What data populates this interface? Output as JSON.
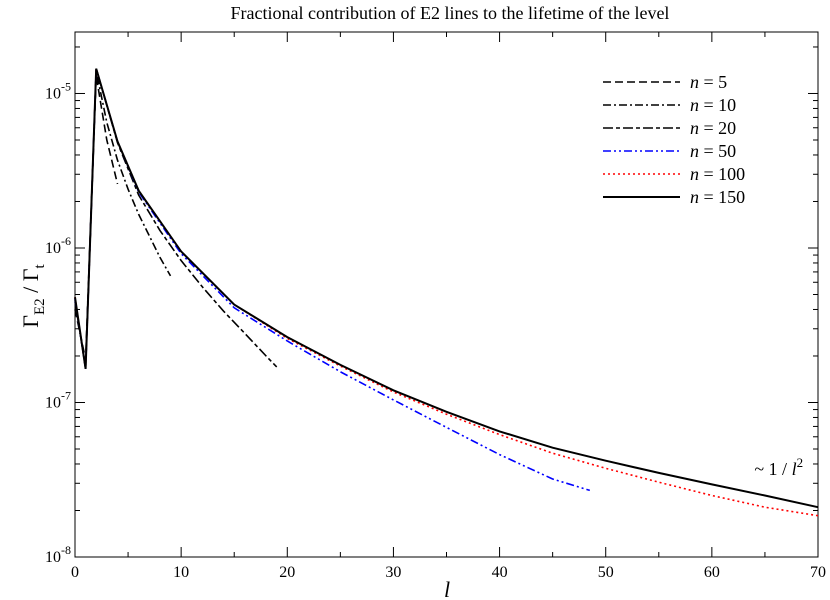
{
  "chart_data": {
    "type": "line",
    "title": "Fractional contribution of E2 lines to the lifetime of the level",
    "xlabel": "l",
    "ylabel": {
      "main": "Γ",
      "sub1": "E2",
      "sep": " / Γ",
      "sub2": "t"
    },
    "x_scale": "linear",
    "y_scale": "log",
    "xlim": [
      0,
      70
    ],
    "ylim": [
      1e-08,
      2.5e-05
    ],
    "x_ticks": [
      0,
      10,
      20,
      30,
      40,
      50,
      60,
      70
    ],
    "x_tick_labels": [
      "0",
      "10",
      "20",
      "30",
      "40",
      "50",
      "60",
      "70"
    ],
    "y_ticks": [
      {
        "value": 1e-08,
        "base": "10",
        "exp": "-8"
      },
      {
        "value": 1e-07,
        "base": "10",
        "exp": "-7"
      },
      {
        "value": 1e-06,
        "base": "10",
        "exp": "-6"
      },
      {
        "value": 1e-05,
        "base": "10",
        "exp": "-5"
      }
    ],
    "legend_position": "top-right",
    "annotation": {
      "prefix": "~ 1 / ",
      "var": "l",
      "exp": "2",
      "x": 64,
      "y": 3.4e-08
    },
    "series": [
      {
        "name": "n = 5",
        "n_label": "n",
        "eq_label": " = 5",
        "color": "#000000",
        "dash": "8,4",
        "x": [
          0,
          1,
          2,
          3,
          4
        ],
        "y": [
          4e-07,
          1.9e-07,
          1.3e-05,
          5e-06,
          2.6e-06
        ]
      },
      {
        "name": "n = 10",
        "n_label": "n",
        "eq_label": " = 10",
        "color": "#000000",
        "dash": "8,3,2,3",
        "x": [
          0,
          1,
          2,
          3,
          4,
          5,
          6,
          7,
          8,
          9
        ],
        "y": [
          4.5e-07,
          1.7e-07,
          1.4e-05,
          6.5e-06,
          3.7e-06,
          2.4e-06,
          1.65e-06,
          1.2e-06,
          8.7e-07,
          6.6e-07
        ]
      },
      {
        "name": "n = 20",
        "n_label": "n",
        "eq_label": " = 20",
        "color": "#000000",
        "dash": "10,3,4,3",
        "x": [
          0,
          1,
          2,
          4,
          6,
          8,
          10,
          12,
          14,
          16,
          18,
          19
        ],
        "y": [
          4.6e-07,
          1.65e-07,
          1.45e-05,
          4.8e-06,
          2.2e-06,
          1.3e-06,
          8.3e-07,
          5.6e-07,
          3.9e-07,
          2.8e-07,
          2e-07,
          1.7e-07
        ]
      },
      {
        "name": "n = 50",
        "n_label": "n",
        "eq_label": " = 50",
        "color": "#0000ff",
        "dash": "8,3,2,3,2,3",
        "x": [
          0,
          1,
          2,
          4,
          6,
          10,
          15,
          20,
          25,
          30,
          35,
          40,
          45,
          48.5
        ],
        "y": [
          4.7e-07,
          1.65e-07,
          1.45e-05,
          4.9e-06,
          2.3e-06,
          9.2e-07,
          4.1e-07,
          2.5e-07,
          1.58e-07,
          1.04e-07,
          6.9e-08,
          4.6e-08,
          3.2e-08,
          2.7e-08
        ]
      },
      {
        "name": "n = 100",
        "n_label": "n",
        "eq_label": " = 100",
        "color": "#ff0000",
        "dash": "2,3",
        "x": [
          0,
          1,
          2,
          4,
          6,
          10,
          15,
          20,
          25,
          30,
          35,
          40,
          45,
          50,
          55,
          60,
          65,
          70
        ],
        "y": [
          4.8e-07,
          1.65e-07,
          1.45e-05,
          4.9e-06,
          2.35e-06,
          9.5e-07,
          4.3e-07,
          2.6e-07,
          1.72e-07,
          1.17e-07,
          8.4e-08,
          6.2e-08,
          4.7e-08,
          3.75e-08,
          3.05e-08,
          2.5e-08,
          2.1e-08,
          1.85e-08
        ]
      },
      {
        "name": "n = 150",
        "n_label": "n",
        "eq_label": " = 150",
        "color": "#000000",
        "dash": "",
        "x": [
          0,
          1,
          2,
          4,
          6,
          10,
          15,
          20,
          25,
          30,
          35,
          40,
          45,
          50,
          55,
          60,
          65,
          70
        ],
        "y": [
          4.8e-07,
          1.65e-07,
          1.45e-05,
          4.9e-06,
          2.35e-06,
          9.5e-07,
          4.3e-07,
          2.65e-07,
          1.75e-07,
          1.2e-07,
          8.7e-08,
          6.5e-08,
          5.1e-08,
          4.2e-08,
          3.5e-08,
          2.95e-08,
          2.5e-08,
          2.1e-08
        ]
      }
    ]
  }
}
